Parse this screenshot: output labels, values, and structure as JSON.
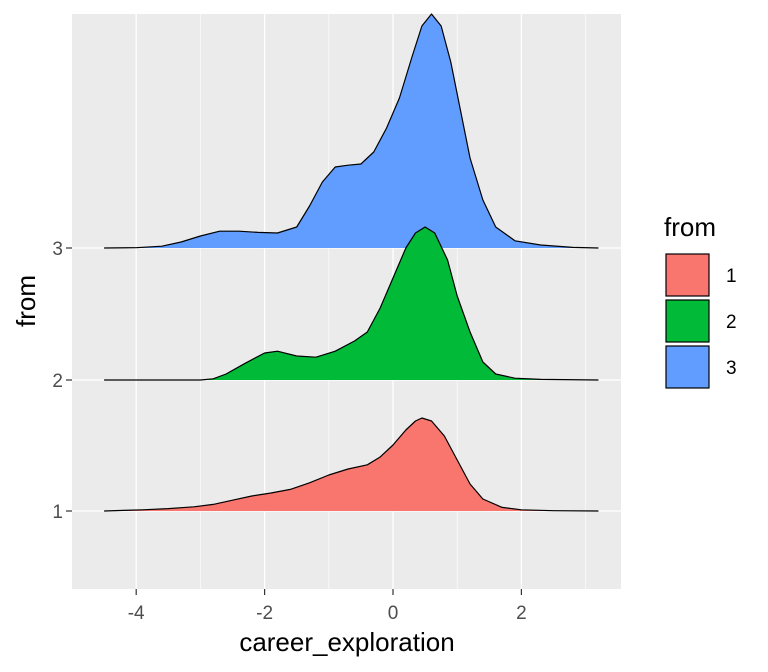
{
  "chart_data": {
    "type": "ridgeline-density",
    "title": "",
    "xlabel": "career_exploration",
    "ylabel": "from",
    "xlim": [
      -4.9,
      3.6
    ],
    "x_ticks": [
      -4,
      -2,
      0,
      2
    ],
    "x_tick_labels": [
      "-4",
      "-2",
      "0",
      "2"
    ],
    "y_tick_labels": [
      "1",
      "2",
      "3"
    ],
    "grid": true,
    "legend": {
      "title": "from",
      "placement": "right",
      "entries": [
        "1",
        "2",
        "3"
      ]
    },
    "series": [
      {
        "name": "1",
        "color": "#F8766D",
        "points": [
          [
            -4.5,
            0.0
          ],
          [
            -4.2,
            0.01
          ],
          [
            -3.9,
            0.02
          ],
          [
            -3.5,
            0.04
          ],
          [
            -3.1,
            0.07
          ],
          [
            -2.8,
            0.11
          ],
          [
            -2.5,
            0.18
          ],
          [
            -2.2,
            0.25
          ],
          [
            -1.9,
            0.3
          ],
          [
            -1.6,
            0.36
          ],
          [
            -1.3,
            0.47
          ],
          [
            -1.0,
            0.6
          ],
          [
            -0.7,
            0.7
          ],
          [
            -0.4,
            0.77
          ],
          [
            -0.2,
            0.9
          ],
          [
            0.0,
            1.1
          ],
          [
            0.2,
            1.35
          ],
          [
            0.35,
            1.5
          ],
          [
            0.45,
            1.55
          ],
          [
            0.6,
            1.5
          ],
          [
            0.8,
            1.25
          ],
          [
            1.0,
            0.85
          ],
          [
            1.2,
            0.45
          ],
          [
            1.4,
            0.2
          ],
          [
            1.7,
            0.06
          ],
          [
            2.0,
            0.02
          ],
          [
            2.5,
            0.005
          ],
          [
            3.2,
            0.0
          ]
        ]
      },
      {
        "name": "2",
        "color": "#00BA38",
        "points": [
          [
            -4.5,
            0.0
          ],
          [
            -3.0,
            0.0
          ],
          [
            -2.8,
            0.02
          ],
          [
            -2.6,
            0.1
          ],
          [
            -2.3,
            0.28
          ],
          [
            -2.0,
            0.45
          ],
          [
            -1.8,
            0.48
          ],
          [
            -1.5,
            0.4
          ],
          [
            -1.2,
            0.38
          ],
          [
            -0.9,
            0.48
          ],
          [
            -0.6,
            0.65
          ],
          [
            -0.4,
            0.8
          ],
          [
            -0.2,
            1.2
          ],
          [
            0.0,
            1.7
          ],
          [
            0.2,
            2.2
          ],
          [
            0.35,
            2.45
          ],
          [
            0.5,
            2.55
          ],
          [
            0.65,
            2.45
          ],
          [
            0.85,
            2.0
          ],
          [
            1.0,
            1.4
          ],
          [
            1.2,
            0.8
          ],
          [
            1.4,
            0.3
          ],
          [
            1.6,
            0.1
          ],
          [
            1.9,
            0.03
          ],
          [
            2.3,
            0.01
          ],
          [
            3.2,
            0.0
          ]
        ]
      },
      {
        "name": "3",
        "color": "#619CFF",
        "points": [
          [
            -4.5,
            0.0
          ],
          [
            -4.0,
            0.005
          ],
          [
            -3.6,
            0.03
          ],
          [
            -3.3,
            0.1
          ],
          [
            -3.0,
            0.2
          ],
          [
            -2.7,
            0.28
          ],
          [
            -2.4,
            0.28
          ],
          [
            -2.1,
            0.26
          ],
          [
            -1.8,
            0.25
          ],
          [
            -1.5,
            0.35
          ],
          [
            -1.3,
            0.7
          ],
          [
            -1.1,
            1.1
          ],
          [
            -0.9,
            1.35
          ],
          [
            -0.7,
            1.38
          ],
          [
            -0.5,
            1.4
          ],
          [
            -0.3,
            1.6
          ],
          [
            -0.1,
            2.0
          ],
          [
            0.1,
            2.5
          ],
          [
            0.3,
            3.2
          ],
          [
            0.45,
            3.7
          ],
          [
            0.6,
            3.9
          ],
          [
            0.75,
            3.7
          ],
          [
            0.9,
            3.1
          ],
          [
            1.05,
            2.3
          ],
          [
            1.2,
            1.5
          ],
          [
            1.4,
            0.8
          ],
          [
            1.6,
            0.35
          ],
          [
            1.9,
            0.12
          ],
          [
            2.3,
            0.05
          ],
          [
            2.8,
            0.01
          ],
          [
            3.2,
            0.0
          ]
        ]
      }
    ]
  }
}
